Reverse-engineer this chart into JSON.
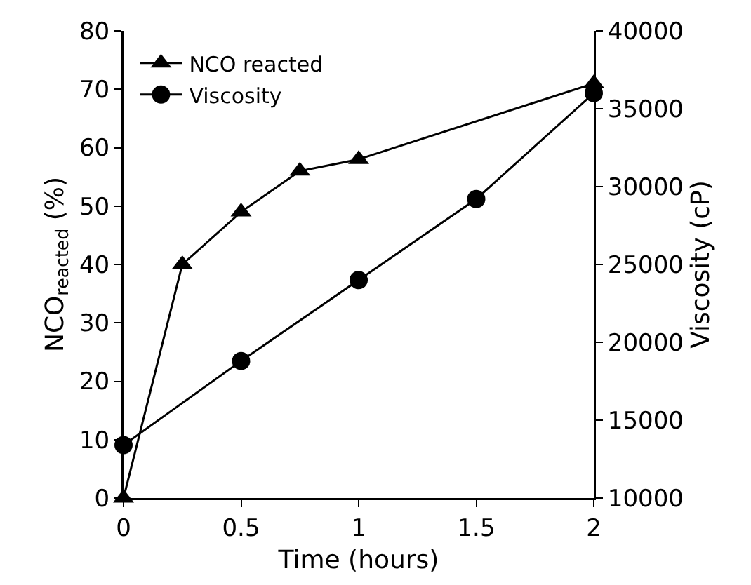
{
  "chart_data": {
    "type": "line",
    "xlabel": "Time (hours)",
    "ylabel": "NCO$_{reacted}$ (%)",
    "y2label": "Viscosity (cP)",
    "xlim": [
      0,
      2
    ],
    "xticks": [
      0,
      0.5,
      1,
      1.5,
      2
    ],
    "ylim": [
      0,
      80
    ],
    "yticks": [
      0,
      10,
      20,
      30,
      40,
      50,
      60,
      70,
      80
    ],
    "y2lim": [
      10000,
      40000
    ],
    "y2ticks": [
      10000,
      15000,
      20000,
      25000,
      30000,
      35000,
      40000
    ],
    "series": [
      {
        "name": "NCO reacted",
        "color": "#000000",
        "marker": "triangle",
        "x": [
          0,
          0.25,
          0.5,
          0.75,
          1,
          2
        ],
        "values": [
          0,
          40,
          49,
          56,
          58,
          71
        ]
      },
      {
        "name": "Viscosity",
        "color": "#000000",
        "marker": "circle",
        "axis": "y2",
        "x": [
          0,
          0.5,
          1,
          1.5,
          2
        ],
        "values": [
          13400,
          18800,
          24000,
          29200,
          36000
        ]
      }
    ],
    "grid": false,
    "legend": "top left",
    "line_style": "solid"
  }
}
